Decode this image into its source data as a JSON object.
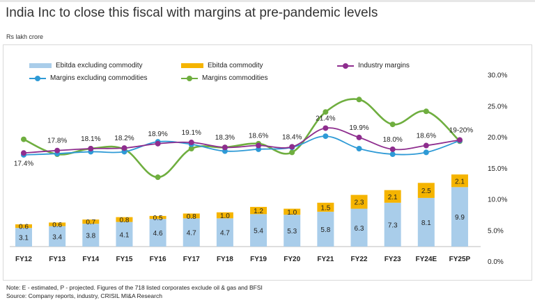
{
  "header": {
    "title": "India Inc to close this fiscal with margins at pre-pandemic levels",
    "subtitle": "Rs lakh crore"
  },
  "legend": {
    "ebitda_ex": "Ebitda excluding commodity",
    "ebitda_comm": "Ebitda commodity",
    "industry": "Industry margins",
    "margins_ex": "Margins excluding commodities",
    "margins_comm": "Margins commodities"
  },
  "colors": {
    "ebitda_ex": "#a9cdea",
    "ebitda_comm": "#f5b400",
    "industry": "#8e2d8e",
    "margins_ex": "#2e9ad6",
    "margins_comm": "#6fae3f"
  },
  "chart_data": {
    "type": "bar",
    "title": "India Inc to close this fiscal with margins at pre-pandemic levels",
    "ylabel": "Rs lakh crore",
    "categories": [
      "FY12",
      "FY13",
      "FY14",
      "FY15",
      "FY16",
      "FY17",
      "FY18",
      "FY19",
      "FY20",
      "FY21",
      "FY22",
      "FY23",
      "FY24E",
      "FY25P"
    ],
    "y2_ticks": [
      "0.0%",
      "5.0%",
      "10.0%",
      "15.0%",
      "20.0%",
      "25.0%",
      "30.0%"
    ],
    "y2lim": [
      0,
      30
    ],
    "stacked": true,
    "series": [
      {
        "name": "Ebitda excluding commodity",
        "kind": "bar",
        "values": [
          3.1,
          3.4,
          3.8,
          4.1,
          4.6,
          4.7,
          4.7,
          5.4,
          5.3,
          5.8,
          6.3,
          7.3,
          8.1,
          9.9
        ],
        "labels": [
          "3.1",
          "3.4",
          "3.8",
          "4.1",
          "4.6",
          "4.7",
          "4.7",
          "5.4",
          "5.3",
          "5.8",
          "6.3",
          "7.3",
          "8.1",
          "9.9"
        ]
      },
      {
        "name": "Ebitda commodity",
        "kind": "bar",
        "values": [
          0.6,
          0.6,
          0.7,
          0.8,
          0.5,
          0.8,
          1.0,
          1.2,
          1.0,
          1.5,
          2.3,
          2.1,
          2.5,
          2.1
        ],
        "labels": [
          "0.6",
          "0.6",
          "0.7",
          "0.8",
          "0.5",
          "0.8",
          "1.0",
          "1.2",
          "1.0",
          "1.5",
          "2.3",
          "2.1",
          "2.5",
          "2.1"
        ]
      },
      {
        "name": "Industry margins",
        "kind": "line",
        "values": [
          17.4,
          17.8,
          18.1,
          18.2,
          18.9,
          19.1,
          18.3,
          18.6,
          18.4,
          21.4,
          19.9,
          18.0,
          18.6,
          19.5
        ],
        "labels": [
          "17.4%",
          "17.8%",
          "18.1%",
          "18.2%",
          "18.9%",
          "19.1%",
          "18.3%",
          "18.6%",
          "18.4%",
          "21.4%",
          "19.9%",
          "18.0%",
          "18.6%",
          "19-20%"
        ]
      },
      {
        "name": "Margins excluding commodities",
        "kind": "line",
        "values": [
          17.1,
          17.3,
          17.6,
          17.6,
          19.2,
          18.8,
          17.7,
          18.0,
          18.3,
          20.1,
          18.1,
          17.2,
          17.5,
          19.4
        ]
      },
      {
        "name": "Margins commodities",
        "kind": "line",
        "values": [
          19.6,
          17.2,
          18.1,
          18.0,
          13.5,
          18.1,
          18.3,
          18.9,
          17.5,
          24.0,
          26.0,
          22.0,
          24.1,
          19.3
        ]
      }
    ]
  },
  "footer": {
    "note": "Note: E - estimated, P - projected. Figures of the 718 listed corporates exclude oil & gas and BFSI",
    "source": "Source: Company reports, industry, CRISIL MI&A Research"
  }
}
